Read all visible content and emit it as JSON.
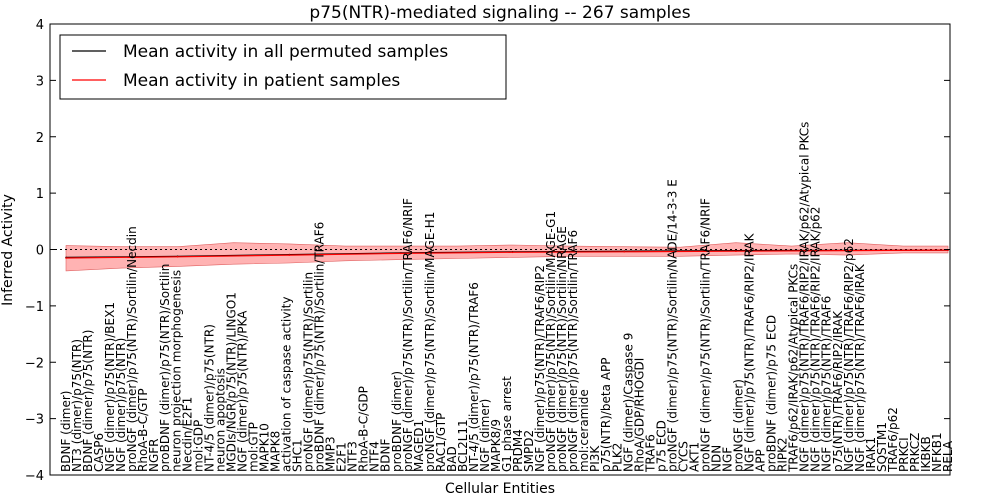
{
  "chart_data": {
    "type": "line",
    "title": "p75(NTR)-mediated signaling -- 267 samples",
    "xlabel": "Cellular Entities",
    "ylabel": "Inferred Activity",
    "ylim": [
      -4,
      4
    ],
    "yticks": [
      4,
      3,
      2,
      1,
      0,
      -1,
      -2,
      -3,
      -4
    ],
    "ytick_labels": [
      "4",
      "3",
      "2",
      "1",
      "0",
      "−1",
      "−2",
      "−3",
      "−4"
    ],
    "legend": {
      "placement": "top-left",
      "entries": [
        {
          "label": "Mean activity in all permuted samples",
          "color": "#000000"
        },
        {
          "label": "Mean activity in patient samples",
          "color": "#ff0000"
        }
      ]
    },
    "band_color": "#ff9999",
    "categories": [
      "BDNF (dimer)",
      "NT3 (dimer)/p75(NTR)",
      "BDNF (dimer)/p75(NTR)",
      "CASP6",
      "NGF (dimer)/p75(NTR)/BEX1",
      "NGF (dimer)/p75(NTR)",
      "proNGF (dimer)/p75(NTR)/Sortilin/Necdin",
      "RhoA-B-C/GTP",
      "NGFR",
      "proBDNF (dimer)/p75(NTR)/Sortilin",
      "neuron projection morphogenesis",
      "Necdin/E2F1",
      "mol:GDP",
      "NT-4/5 (dimer)/p75(NTR)",
      "neuron apoptosis",
      "MGDIs/NGR/p75(NTR)/LINGO1",
      "NGF (dimer)/p75(NTR)/PKA",
      "mol:GTP",
      "MAPK10",
      "MAPK8",
      "activation of caspase activity",
      "SHC1",
      "proNGF (dimer)/p75(NTR)/Sortilin",
      "proBDNF (dimer)/p75(NTR)/Sortilin/TRAF6",
      "MMP3",
      "E2F1",
      "NTF3",
      "RhoA-B-C/GDP",
      "NTF4",
      "BDNF",
      "proBDNF (dimer)",
      "proNGF (dimer)/p75(NTR)/Sortilin/TRAF6/NRIF",
      "MAGED1",
      "proNGF (dimer)/p75(NTR)/Sortilin/MAGE-H1",
      "RAC1/GTP",
      "BAD",
      "BCL2L11",
      "NT-4/5 (dimer)/p75(NTR)/TRAF6",
      "NGF (dimer)",
      "MAPK8/9",
      "G1 phase arrest",
      "PRDM4",
      "SMPD2",
      "NGF (dimer)/p75(NTR)/TRAF6/RIP2",
      "proNGF (dimer)/p75(NTR)/Sortilin/MAGE-G1",
      "proNGF (dimer)/p75(NTR)/Sortilin/NRAGE",
      "proNGF (dimer)/p75(NTR)/Sortilin/TRAF6",
      "mol:ceramide",
      "PI3K",
      "p75(NTR)/beta APP",
      "PLK2",
      "NGF (dimer)/Caspase 9",
      "RhoA/GDP/RHOGDI",
      "TRAF6",
      "p75 ECD",
      "proNGF (dimer)/p75(NTR)/Sortilin/NADE/14-3-3 E",
      "CYCS",
      "AKT1",
      "proNGF (dimer)/p75(NTR)/Sortilin/TRAF6/NRIF",
      "NDN",
      "NGF",
      "proNGF (dimer)",
      "NGF (dimer)/p75(NTR)/TRAF6/RIP2/IRAK",
      "APP",
      "proBDNF (dimer)/p75 ECD",
      "RIPK2",
      "TRAF6/p62/IRAK/p62/Atypical PKCs",
      "NGF (dimer)/p75(NTR)/TRAF6/RIP2/IRAK/p62/Atypical PKCs",
      "NGF (dimer)/p75(NTR)/TRAF6/RIP2/IRAK/p62",
      "NGF (dimer)/p75(NTR)/TRAF6",
      "p75(NTR)/TRAF6/RIP2/IRAK",
      "NGF (dimer)/p75(NTR)/TRAF6/RIP2/p62",
      "NGF (dimer)/p75(NTR)/TRAF6/IRAK",
      "IRAK1",
      "SQSTM1",
      "TRAF6/p62",
      "PRKCI",
      "PRKCZ",
      "IKBKB",
      "NFKB1",
      "RELA"
    ],
    "x_index_range": [
      0,
      79
    ],
    "series": [
      {
        "name": "Mean activity in all permuted samples",
        "color": "#000000",
        "x": [
          0,
          10,
          20,
          30,
          40,
          50,
          60,
          70,
          79
        ],
        "values": [
          -0.14,
          -0.12,
          -0.09,
          -0.06,
          -0.04,
          -0.03,
          -0.02,
          -0.015,
          -0.01
        ]
      },
      {
        "name": "Mean activity in patient samples",
        "color": "#ff0000",
        "x": [
          0,
          10,
          20,
          30,
          40,
          50,
          60,
          70,
          79
        ],
        "values": [
          -0.15,
          -0.13,
          -0.1,
          -0.07,
          -0.05,
          -0.04,
          -0.03,
          -0.02,
          -0.01
        ]
      }
    ],
    "band": {
      "x": [
        0,
        5,
        10,
        15,
        20,
        25,
        30,
        35,
        40,
        45,
        50,
        55,
        60,
        65,
        70,
        75,
        79
      ],
      "upper": [
        0.07,
        0.05,
        0.05,
        0.12,
        0.1,
        0.06,
        0.06,
        0.06,
        0.08,
        0.06,
        0.05,
        0.04,
        0.12,
        0.06,
        0.12,
        0.06,
        0.06
      ],
      "lower": [
        -0.38,
        -0.33,
        -0.3,
        -0.26,
        -0.24,
        -0.2,
        -0.18,
        -0.16,
        -0.14,
        -0.12,
        -0.12,
        -0.12,
        -0.1,
        -0.08,
        -0.1,
        -0.06,
        -0.06
      ]
    }
  }
}
